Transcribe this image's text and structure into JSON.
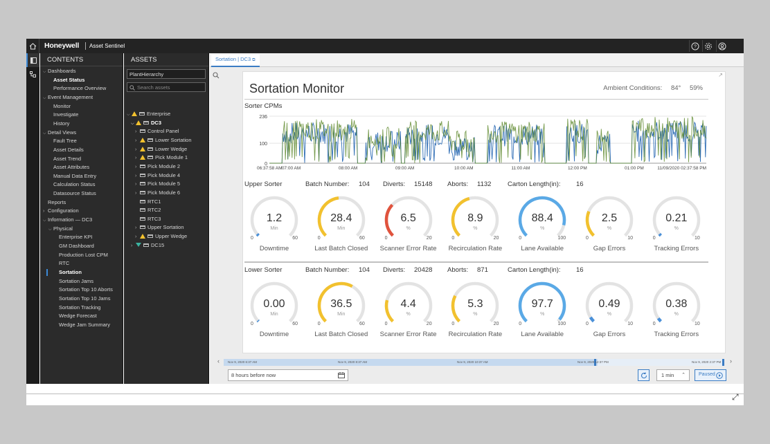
{
  "topbar": {
    "brand": "Honeywell",
    "app_name": "Asset Sentinel",
    "icons": [
      "home-icon",
      "help-icon",
      "settings-icon",
      "user-icon"
    ]
  },
  "contents": {
    "header": "CONTENTS",
    "items": [
      {
        "label": "Dashboards",
        "level": 0,
        "expanded": true
      },
      {
        "label": "Asset Status",
        "level": 1,
        "bold": true
      },
      {
        "label": "Performance Overview",
        "level": 1
      },
      {
        "label": "Event Management",
        "level": 0,
        "expanded": true
      },
      {
        "label": "Monitor",
        "level": 1
      },
      {
        "label": "Investigate",
        "level": 1
      },
      {
        "label": "History",
        "level": 1
      },
      {
        "label": "Detail Views",
        "level": 0,
        "expanded": true
      },
      {
        "label": "Fault Tree",
        "level": 1
      },
      {
        "label": "Asset Details",
        "level": 1
      },
      {
        "label": "Asset Trend",
        "level": 1
      },
      {
        "label": "Asset Attributes",
        "level": 1
      },
      {
        "label": "Manual Data Entry",
        "level": 1
      },
      {
        "label": "Calculation Status",
        "level": 1
      },
      {
        "label": "Datasource Status",
        "level": 1
      },
      {
        "label": "Reports",
        "level": 0
      },
      {
        "label": "Configuration",
        "level": 0,
        "collapsed": true
      },
      {
        "label": "Information — DC3",
        "level": 0,
        "expanded": true
      },
      {
        "label": "Physical",
        "level": 1,
        "expanded": true
      },
      {
        "label": "Enterprise KPI",
        "level": 2
      },
      {
        "label": "GM Dashboard",
        "level": 2
      },
      {
        "label": "Production Lost CPM",
        "level": 2
      },
      {
        "label": "RTC",
        "level": 2
      },
      {
        "label": "Sortation",
        "level": 2,
        "bold": true,
        "selected": true
      },
      {
        "label": "Sortation Jams",
        "level": 2
      },
      {
        "label": "Sortation Top 10 Aborts",
        "level": 2
      },
      {
        "label": "Sortation Top 10 Jams",
        "level": 2
      },
      {
        "label": "Sortation Tracking",
        "level": 2
      },
      {
        "label": "Wedge Forecast",
        "level": 2
      },
      {
        "label": "Wedge Jam Summary",
        "level": 2
      }
    ]
  },
  "assets": {
    "header": "ASSETS",
    "hierarchy": "PlantHierarchy",
    "search_placeholder": "Search assets",
    "items": [
      {
        "label": "Enterprise",
        "level": 0,
        "warn": true,
        "expanded": true
      },
      {
        "label": "DC3",
        "level": 1,
        "warn": true,
        "expanded": true,
        "bold": true
      },
      {
        "label": "Control Panel",
        "level": 2
      },
      {
        "label": "Lower Sortation",
        "level": 2,
        "warn": true
      },
      {
        "label": "Lower Wedge",
        "level": 2,
        "warn": true
      },
      {
        "label": "Pick Module 1",
        "level": 2,
        "warn": true
      },
      {
        "label": "Pick Module 2",
        "level": 2
      },
      {
        "label": "Pick Module 4",
        "level": 2
      },
      {
        "label": "Pick Module 5",
        "level": 2
      },
      {
        "label": "Pick Module 6",
        "level": 2
      },
      {
        "label": "RTC1",
        "level": 2,
        "leaf": true
      },
      {
        "label": "RTC2",
        "level": 2,
        "leaf": true
      },
      {
        "label": "RTC3",
        "level": 2,
        "leaf": true
      },
      {
        "label": "Upper Sortation",
        "level": 2
      },
      {
        "label": "Upper Wedge",
        "level": 2,
        "warn": true
      },
      {
        "label": "DC15",
        "level": 1,
        "ok": true
      }
    ]
  },
  "tab": {
    "label": "Sortation | DC3"
  },
  "dashboard": {
    "title": "Sortation Monitor",
    "ambient_label": "Ambient Conditions:",
    "ambient_temp": "84°",
    "ambient_humidity": "59%",
    "chart_title": "Sorter CPMs"
  },
  "chart_data": {
    "type": "line",
    "title": "Sorter CPMs",
    "y_ticks": [
      "236",
      "100",
      "0"
    ],
    "ylim": [
      0,
      236
    ],
    "x_ticks": [
      "06:37:58 AM",
      "07:00 AM",
      "08:00 AM",
      "09:00 AM",
      "10:00 AM",
      "11:00 AM",
      "12:00 PM",
      "01:00 PM",
      "11/09/2020 02:37:58 PM"
    ],
    "series": [
      {
        "name": "Upper Sorter",
        "color": "#2f6db5"
      },
      {
        "name": "Lower Sorter",
        "color": "#5f8a2e"
      }
    ],
    "segments": [
      {
        "from": 0.03,
        "to": 0.2,
        "level": 150
      },
      {
        "from": 0.22,
        "to": 0.3,
        "level": 110
      },
      {
        "from": 0.31,
        "to": 0.41,
        "level": 140
      },
      {
        "from": 0.41,
        "to": 0.47,
        "level": 90
      },
      {
        "from": 0.5,
        "to": 0.63,
        "level": 140
      },
      {
        "from": 0.68,
        "to": 0.73,
        "level": 150
      },
      {
        "from": 0.75,
        "to": 0.78,
        "level": 100
      },
      {
        "from": 0.83,
        "to": 1.0,
        "level": 160
      }
    ]
  },
  "upper": {
    "name": "Upper Sorter",
    "batch_label": "Batch Number:",
    "batch": "104",
    "diverts_label": "Diverts:",
    "diverts": "15148",
    "aborts_label": "Aborts:",
    "aborts": "1132",
    "carton_label": "Carton Length(in):",
    "carton": "16",
    "gauges": [
      {
        "value": "1.2",
        "num": 1.2,
        "unit": "Min",
        "min": "0",
        "max": "60",
        "maxnum": 60,
        "label": "Downtime",
        "color": "#4a90d9"
      },
      {
        "value": "28.4",
        "num": 28.4,
        "unit": "Min",
        "min": "0",
        "max": "60",
        "maxnum": 60,
        "label": "Last Batch Closed",
        "color": "#f2c12e"
      },
      {
        "value": "6.5",
        "num": 6.5,
        "unit": "%",
        "min": "0",
        "max": "20",
        "maxnum": 20,
        "label": "Scanner Error Rate",
        "color": "#e0533d"
      },
      {
        "value": "8.9",
        "num": 8.9,
        "unit": "%",
        "min": "0",
        "max": "20",
        "maxnum": 20,
        "label": "Recirculation Rate",
        "color": "#f2c12e"
      },
      {
        "value": "88.4",
        "num": 88.4,
        "unit": "%",
        "min": "0",
        "max": "100",
        "maxnum": 100,
        "label": "Lane Available",
        "color": "#5aa9e6"
      },
      {
        "value": "2.5",
        "num": 2.5,
        "unit": "%",
        "min": "0",
        "max": "10",
        "maxnum": 10,
        "label": "Gap Errors",
        "color": "#f2c12e"
      },
      {
        "value": "0.21",
        "num": 0.21,
        "unit": "%",
        "min": "0",
        "max": "10",
        "maxnum": 10,
        "label": "Tracking Errors",
        "color": "#4a90d9"
      }
    ]
  },
  "lower": {
    "name": "Lower Sorter",
    "batch_label": "Batch Number:",
    "batch": "104",
    "diverts_label": "Diverts:",
    "diverts": "20428",
    "aborts_label": "Aborts:",
    "aborts": "871",
    "carton_label": "Carton Length(in):",
    "carton": "16",
    "gauges": [
      {
        "value": "0.00",
        "num": 0.0,
        "unit": "Min",
        "min": "0",
        "max": "60",
        "maxnum": 60,
        "label": "Downtime",
        "color": "#4a90d9"
      },
      {
        "value": "36.5",
        "num": 36.5,
        "unit": "Min",
        "min": "0",
        "max": "60",
        "maxnum": 60,
        "label": "Last Batch Closed",
        "color": "#f2c12e"
      },
      {
        "value": "4.4",
        "num": 4.4,
        "unit": "%",
        "min": "0",
        "max": "20",
        "maxnum": 20,
        "label": "Scanner Error Rate",
        "color": "#f2c12e"
      },
      {
        "value": "5.3",
        "num": 5.3,
        "unit": "%",
        "min": "0",
        "max": "20",
        "maxnum": 20,
        "label": "Recirculation Rate",
        "color": "#f2c12e"
      },
      {
        "value": "97.7",
        "num": 97.7,
        "unit": "%",
        "min": "0",
        "max": "100",
        "maxnum": 100,
        "label": "Lane Available",
        "color": "#5aa9e6"
      },
      {
        "value": "0.49",
        "num": 0.49,
        "unit": "%",
        "min": "0",
        "max": "10",
        "maxnum": 10,
        "label": "Gap Errors",
        "color": "#4a90d9"
      },
      {
        "value": "0.38",
        "num": 0.38,
        "unit": "%",
        "min": "0",
        "max": "10",
        "maxnum": 10,
        "label": "Tracking Errors",
        "color": "#4a90d9"
      }
    ]
  },
  "timeline": {
    "labels": [
      "Nov 9, 2020 6:37 AM",
      "Nov 9, 2020 8:37 AM",
      "Nov 9, 2020 10:37 AM",
      "Nov 9, 2020 12:37 PM",
      "Nov 9, 2020 2:37 PM"
    ]
  },
  "controls": {
    "time_range": "8 hours before now",
    "interval": "1 min",
    "paused": "Paused"
  }
}
